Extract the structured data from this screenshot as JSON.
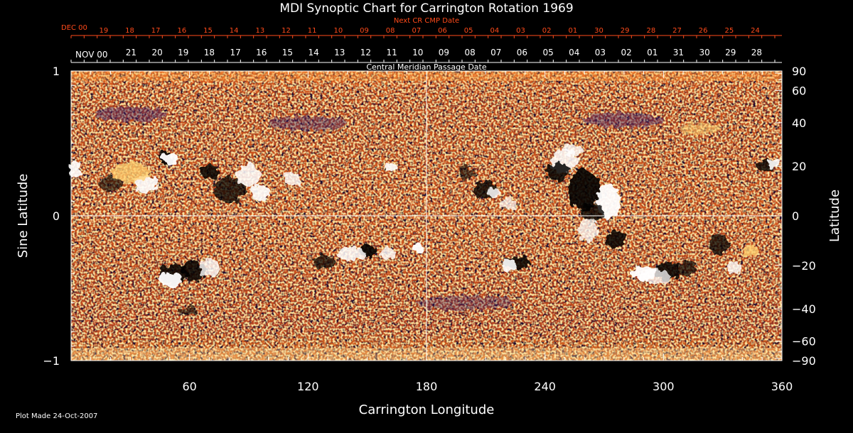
{
  "chart_data": {
    "type": "heatmap",
    "title": "MDI Synoptic Chart for Carrington Rotation 1969",
    "xlabel": "Carrington Longitude",
    "ylabel_left": "Sine Latitude",
    "ylabel_right": "Latitude",
    "xlim": [
      0,
      360
    ],
    "ylim": [
      -1,
      1
    ],
    "x_ticks": [
      60,
      120,
      180,
      240,
      300,
      360
    ],
    "y_ticks_left": [
      {
        "v": 1,
        "label": "1"
      },
      {
        "v": 0,
        "label": "0"
      },
      {
        "v": -1,
        "label": "−1"
      }
    ],
    "y_ticks_right": [
      90,
      60,
      40,
      20,
      0,
      -20,
      -40,
      -60,
      -90
    ],
    "next_cr_axis": {
      "label": "Next CR CMP Date",
      "month_label": "DEC 00",
      "days": [
        "19",
        "18",
        "17",
        "16",
        "15",
        "14",
        "13",
        "12",
        "11",
        "10",
        "09",
        "08",
        "07",
        "06",
        "05",
        "04",
        "03",
        "02",
        "01",
        "30",
        "29",
        "28",
        "27",
        "26",
        "25",
        "24"
      ],
      "day_lon_start": 16.5,
      "day_lon_step": 13.2,
      "color": "#ff4a1a"
    },
    "cmp_axis": {
      "label": "Central Meridian Passage Date",
      "month_label": "NOV 00",
      "days": [
        "21",
        "20",
        "19",
        "18",
        "17",
        "16",
        "15",
        "14",
        "13",
        "12",
        "11",
        "10",
        "09",
        "08",
        "07",
        "06",
        "05",
        "04",
        "03",
        "02",
        "01",
        "31",
        "30",
        "29",
        "28"
      ],
      "day_lon_start": 30.4,
      "day_lon_step": 13.2
    },
    "guide_lines": {
      "longitude": 180,
      "sine_latitude": 0
    },
    "colors": {
      "background": "#000000",
      "axis": "#ffffff",
      "strong_positive": "#ffffff",
      "positive": "#ffd070",
      "neutral_mid": "#d85a12",
      "quiet_bright": "#ff8a2a",
      "negative": "#3a1560",
      "strong_negative": "#000000"
    },
    "footer": "Plot Made 24-Oct-2007"
  }
}
